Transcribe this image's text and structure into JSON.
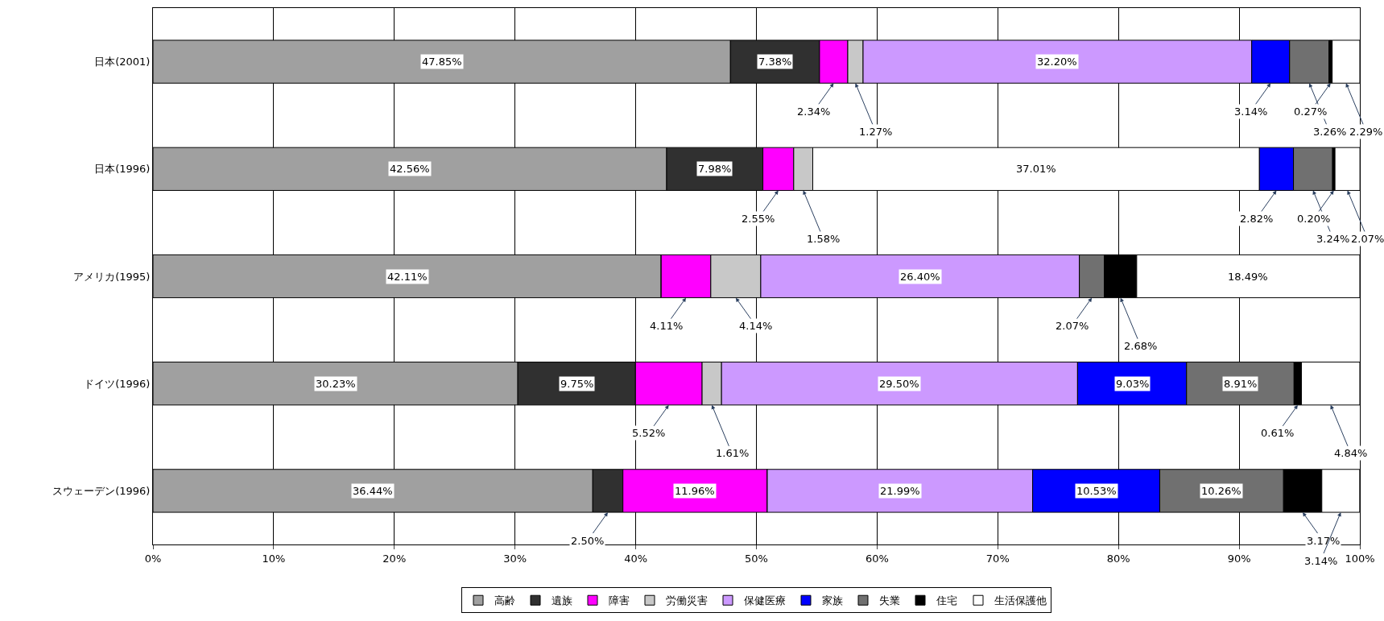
{
  "chart_data": {
    "type": "bar",
    "orientation": "horizontal",
    "stacked": true,
    "categories": [
      "日本(2001)",
      "日本(1996)",
      "アメリカ(1995)",
      "ドイツ(1996)",
      "スウェーデン(1996)"
    ],
    "xlim": [
      0,
      100
    ],
    "xticks": [
      {
        "value": 0,
        "label": "0%"
      },
      {
        "value": 10,
        "label": "10%"
      },
      {
        "value": 20,
        "label": "20%"
      },
      {
        "value": 30,
        "label": "30%"
      },
      {
        "value": 40,
        "label": "40%"
      },
      {
        "value": 50,
        "label": "50%"
      },
      {
        "value": 60,
        "label": "60%"
      },
      {
        "value": 70,
        "label": "70%"
      },
      {
        "value": 80,
        "label": "80%"
      },
      {
        "value": 90,
        "label": "90%"
      },
      {
        "value": 100,
        "label": "100%"
      }
    ],
    "grid": "x",
    "legend": "bottom",
    "series": [
      {
        "name": "高齢",
        "color": "#a0a0a0",
        "values": [
          47.85,
          42.56,
          42.11,
          30.23,
          36.44
        ],
        "value_labels": [
          "47.85%",
          "42.56%",
          "42.11%",
          "30.23%",
          "36.44%"
        ]
      },
      {
        "name": "遺族",
        "color": "#303030",
        "values": [
          7.38,
          7.98,
          null,
          9.75,
          2.5
        ],
        "value_labels": [
          "7.38%",
          "7.98%",
          null,
          "9.75%",
          "2.50%"
        ]
      },
      {
        "name": "障害",
        "color": "#ff00ff",
        "values": [
          2.34,
          2.55,
          4.11,
          5.52,
          11.96
        ],
        "value_labels": [
          "2.34%",
          "2.55%",
          "4.11%",
          "5.52%",
          "11.96%"
        ]
      },
      {
        "name": "労働災害",
        "color": "#c8c8c8",
        "values": [
          1.27,
          1.58,
          4.14,
          1.61,
          null
        ],
        "value_labels": [
          "1.27%",
          "1.58%",
          "4.14%",
          "1.61%",
          null
        ]
      },
      {
        "name": "保健医療",
        "colors": [
          "#cc99ff",
          "#ffffff",
          "#cc99ff",
          "#cc99ff",
          "#cc99ff"
        ],
        "values": [
          32.2,
          37.01,
          26.4,
          29.5,
          21.99
        ],
        "value_labels": [
          "32.20%",
          "37.01%",
          "26.40%",
          "29.50%",
          "21.99%"
        ]
      },
      {
        "name": "家族",
        "color": "#0000ff",
        "values": [
          3.14,
          2.82,
          null,
          9.03,
          10.53
        ],
        "value_labels": [
          "3.14%",
          "2.82%",
          null,
          "9.03%",
          "10.53%"
        ]
      },
      {
        "name": "失業",
        "color": "#707070",
        "values": [
          3.26,
          3.24,
          2.07,
          8.91,
          10.26
        ],
        "value_labels": [
          "3.26%",
          "3.24%",
          "2.07%",
          "8.91%",
          "10.26%"
        ]
      },
      {
        "name": "住宅",
        "color": "#000000",
        "values": [
          0.27,
          0.2,
          2.68,
          0.61,
          3.17
        ],
        "value_labels": [
          "0.27%",
          "0.20%",
          "2.68%",
          "0.61%",
          "3.17%"
        ]
      },
      {
        "name": "生活保護他",
        "color": "#ffffff",
        "values": [
          2.29,
          2.07,
          18.49,
          4.84,
          3.14
        ],
        "value_labels": [
          "2.29%",
          "2.07%",
          "18.49%",
          "4.84%",
          "3.14%"
        ]
      }
    ]
  }
}
